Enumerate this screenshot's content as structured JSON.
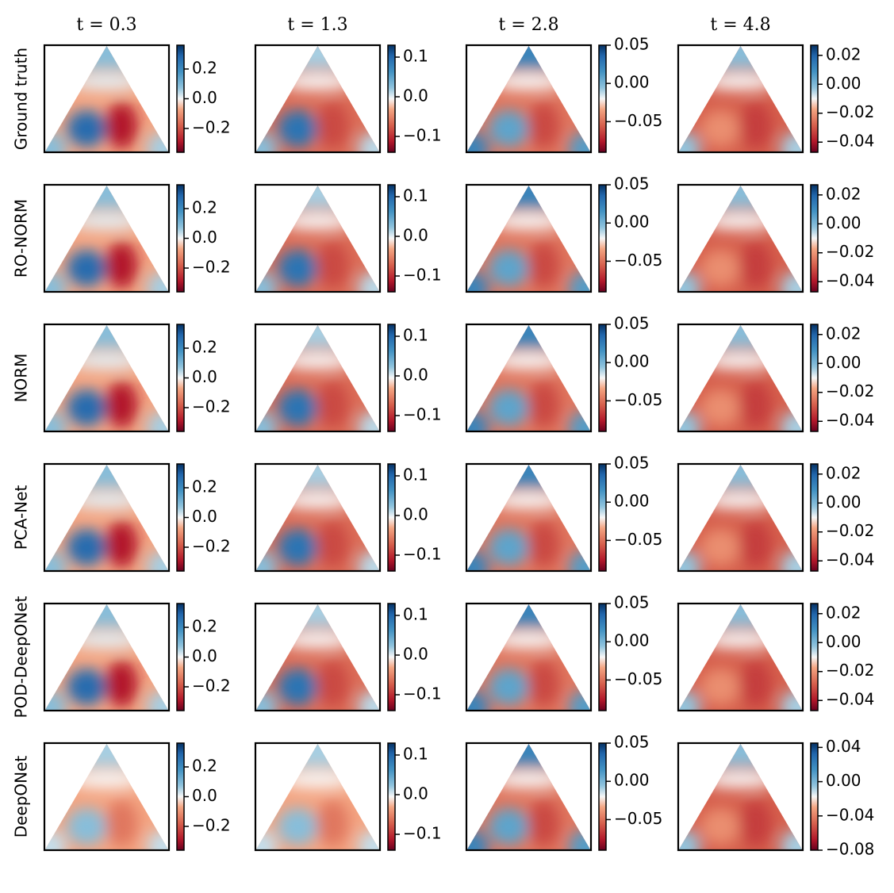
{
  "chart_data": {
    "type": "heatmap",
    "column_titles": [
      "t = 0.3",
      "t = 1.3",
      "t = 2.8",
      "t = 4.8"
    ],
    "row_labels": [
      "Ground truth",
      "RO-NORM",
      "NORM",
      "PCA-Net",
      "POD-DeepONet",
      "DeepONet"
    ],
    "colormap": "RdBu",
    "colors": {
      "red": "#67001f",
      "mid": "#f7f7f7",
      "blue": "#053061"
    },
    "colorbars": [
      [
        {
          "ticks": [
            "0.2",
            "0.0",
            "−0.2"
          ],
          "tick_values": [
            0.2,
            0.0,
            -0.2
          ],
          "range": [
            -0.36,
            0.36
          ]
        },
        {
          "ticks": [
            "0.1",
            "0.0",
            "−0.1"
          ],
          "tick_values": [
            0.1,
            0.0,
            -0.1
          ],
          "range": [
            -0.14,
            0.13
          ]
        },
        {
          "ticks": [
            "0.05",
            "0.00",
            "−0.05"
          ],
          "tick_values": [
            0.05,
            0.0,
            -0.05
          ],
          "range": [
            -0.09,
            0.05
          ]
        },
        {
          "ticks": [
            "0.02",
            "0.00",
            "−0.02",
            "−0.04"
          ],
          "tick_values": [
            0.02,
            0.0,
            -0.02,
            -0.04
          ],
          "range": [
            -0.047,
            0.027
          ]
        }
      ],
      [
        {
          "ticks": [
            "0.2",
            "0.0",
            "−0.2"
          ],
          "tick_values": [
            0.2,
            0.0,
            -0.2
          ],
          "range": [
            -0.36,
            0.36
          ]
        },
        {
          "ticks": [
            "0.1",
            "0.0",
            "−0.1"
          ],
          "tick_values": [
            0.1,
            0.0,
            -0.1
          ],
          "range": [
            -0.14,
            0.13
          ]
        },
        {
          "ticks": [
            "0.05",
            "0.00",
            "−0.05"
          ],
          "tick_values": [
            0.05,
            0.0,
            -0.05
          ],
          "range": [
            -0.09,
            0.05
          ]
        },
        {
          "ticks": [
            "0.02",
            "0.00",
            "−0.02",
            "−0.04"
          ],
          "tick_values": [
            0.02,
            0.0,
            -0.02,
            -0.04
          ],
          "range": [
            -0.047,
            0.027
          ]
        }
      ],
      [
        {
          "ticks": [
            "0.2",
            "0.0",
            "−0.2"
          ],
          "tick_values": [
            0.2,
            0.0,
            -0.2
          ],
          "range": [
            -0.36,
            0.36
          ]
        },
        {
          "ticks": [
            "0.1",
            "0.0",
            "−0.1"
          ],
          "tick_values": [
            0.1,
            0.0,
            -0.1
          ],
          "range": [
            -0.14,
            0.13
          ]
        },
        {
          "ticks": [
            "0.05",
            "0.00",
            "−0.05"
          ],
          "tick_values": [
            0.05,
            0.0,
            -0.05
          ],
          "range": [
            -0.09,
            0.05
          ]
        },
        {
          "ticks": [
            "0.02",
            "0.00",
            "−0.02",
            "−0.04"
          ],
          "tick_values": [
            0.02,
            0.0,
            -0.02,
            -0.04
          ],
          "range": [
            -0.047,
            0.027
          ]
        }
      ],
      [
        {
          "ticks": [
            "0.2",
            "0.0",
            "−0.2"
          ],
          "tick_values": [
            0.2,
            0.0,
            -0.2
          ],
          "range": [
            -0.36,
            0.36
          ]
        },
        {
          "ticks": [
            "0.1",
            "0.0",
            "−0.1"
          ],
          "tick_values": [
            0.1,
            0.0,
            -0.1
          ],
          "range": [
            -0.14,
            0.13
          ]
        },
        {
          "ticks": [
            "0.05",
            "0.00",
            "−0.05"
          ],
          "tick_values": [
            0.05,
            0.0,
            -0.05
          ],
          "range": [
            -0.09,
            0.05
          ]
        },
        {
          "ticks": [
            "0.02",
            "0.00",
            "−0.02",
            "−0.04"
          ],
          "tick_values": [
            0.02,
            0.0,
            -0.02,
            -0.04
          ],
          "range": [
            -0.047,
            0.027
          ]
        }
      ],
      [
        {
          "ticks": [
            "0.2",
            "0.0",
            "−0.2"
          ],
          "tick_values": [
            0.2,
            0.0,
            -0.2
          ],
          "range": [
            -0.36,
            0.36
          ]
        },
        {
          "ticks": [
            "0.1",
            "0.0",
            "−0.1"
          ],
          "tick_values": [
            0.1,
            0.0,
            -0.1
          ],
          "range": [
            -0.14,
            0.13
          ]
        },
        {
          "ticks": [
            "0.05",
            "0.00",
            "−0.05"
          ],
          "tick_values": [
            0.05,
            0.0,
            -0.05
          ],
          "range": [
            -0.09,
            0.05
          ]
        },
        {
          "ticks": [
            "0.02",
            "0.00",
            "−0.02",
            "−0.04"
          ],
          "tick_values": [
            0.02,
            0.0,
            -0.02,
            -0.04
          ],
          "range": [
            -0.047,
            0.027
          ]
        }
      ],
      [
        {
          "ticks": [
            "0.2",
            "0.0",
            "−0.2"
          ],
          "tick_values": [
            0.2,
            0.0,
            -0.2
          ],
          "range": [
            -0.36,
            0.36
          ]
        },
        {
          "ticks": [
            "0.1",
            "0.0",
            "−0.1"
          ],
          "tick_values": [
            0.1,
            0.0,
            -0.1
          ],
          "range": [
            -0.14,
            0.13
          ]
        },
        {
          "ticks": [
            "0.05",
            "0.00",
            "−0.05"
          ],
          "tick_values": [
            0.05,
            0.0,
            -0.05
          ],
          "range": [
            -0.09,
            0.05
          ]
        },
        {
          "ticks": [
            "0.04",
            "0.00",
            "−0.04",
            "−0.08"
          ],
          "tick_values": [
            0.04,
            0.0,
            -0.04,
            -0.08
          ],
          "range": [
            -0.08,
            0.045
          ]
        }
      ]
    ]
  }
}
